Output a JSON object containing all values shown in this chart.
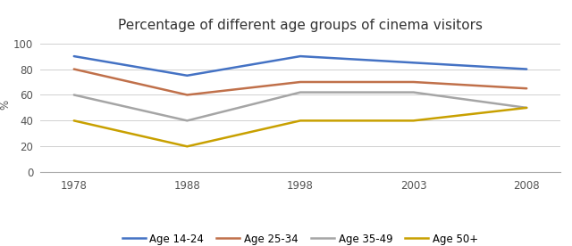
{
  "title": "Percentage of different age groups of cinema visitors",
  "ylabel": "%",
  "years": [
    "1978",
    "1988",
    "1998",
    "2003",
    "2008"
  ],
  "series": [
    {
      "label": "Age 14-24",
      "color": "#4472C4",
      "values": [
        90,
        75,
        90,
        85,
        80
      ]
    },
    {
      "label": "Age 25-34",
      "color": "#C0704A",
      "values": [
        80,
        60,
        70,
        70,
        65
      ]
    },
    {
      "label": "Age 35-49",
      "color": "#A5A5A5",
      "values": [
        60,
        40,
        62,
        62,
        50
      ]
    },
    {
      "label": "Age 50+",
      "color": "#C8A000",
      "values": [
        40,
        20,
        40,
        40,
        50
      ]
    }
  ],
  "ylim": [
    0,
    105
  ],
  "yticks": [
    0,
    20,
    40,
    60,
    80,
    100
  ],
  "background_color": "#ffffff",
  "title_fontsize": 11,
  "legend_fontsize": 8.5,
  "axis_fontsize": 8.5,
  "linewidth": 1.8
}
